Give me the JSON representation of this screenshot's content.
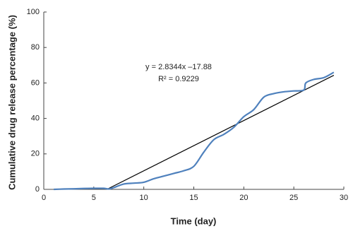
{
  "chart_data": {
    "type": "line",
    "x_label": "Time (day)",
    "y_label": "Cumulative drug release percentage (%)",
    "x": [
      1,
      2,
      3,
      4,
      5,
      6,
      6.5,
      7,
      8,
      9,
      10,
      11,
      12,
      13,
      14,
      15,
      16,
      17,
      18,
      19,
      20,
      21,
      22,
      23,
      24,
      25,
      26,
      26.2,
      27,
      28,
      29
    ],
    "series": [
      {
        "color": "#4f81bd",
        "values": [
          0,
          0.2,
          0.3,
          0.5,
          0.6,
          0.6,
          0.2,
          1,
          3,
          3.5,
          4,
          6,
          7.5,
          9,
          10.5,
          13,
          21,
          28,
          31,
          35,
          41,
          45,
          52,
          54,
          55,
          55.5,
          56,
          60,
          62,
          63,
          66
        ]
      }
    ],
    "trendline": {
      "slope": 2.8344,
      "intercept": -17.88,
      "x_range": [
        6.31,
        29
      ],
      "color": "#000000",
      "equation": "y = 2.8344x –17.88",
      "r_squared": "R² = 0.9229"
    },
    "xlim": [
      0,
      30
    ],
    "xticks": [
      0,
      5,
      10,
      15,
      20,
      25,
      30
    ],
    "ylim": [
      0,
      100
    ],
    "yticks": [
      0,
      20,
      40,
      60,
      80,
      100
    ]
  }
}
